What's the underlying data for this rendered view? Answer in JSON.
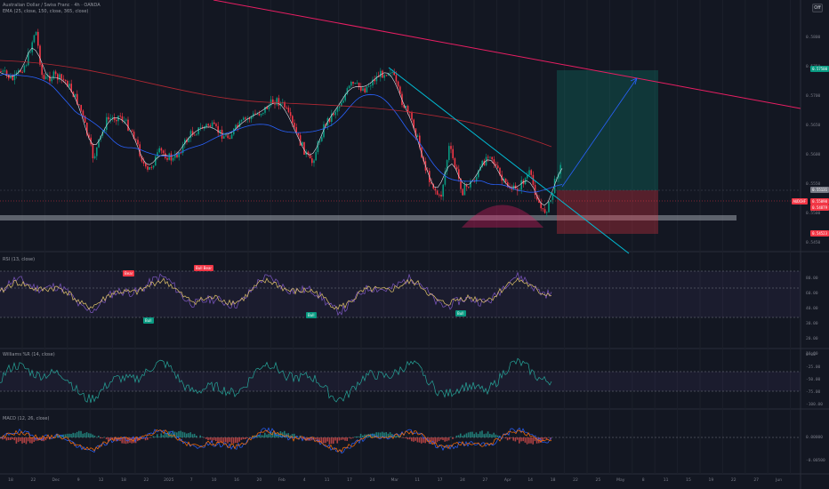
{
  "header": {
    "title": "Australian Dollar / Swiss Franc · 4h · OANDA",
    "ema_legend": "EMA (25, close, 150, close, 365, close)",
    "off_label": "Off"
  },
  "panes": {
    "rsi_label": "RSI (13, close)",
    "williams_label": "Williams %R (14, close)",
    "macd_label": "MACD (12, 26, close)"
  },
  "price_axis": [
    "0.5800",
    "0.5750",
    "0.5700",
    "0.5650",
    "0.5600",
    "0.5550",
    "0.5500",
    "0.5450"
  ],
  "price_tags": [
    {
      "label": "0.57500",
      "color": "#089981"
    },
    {
      "label": "0.55131",
      "color": "#787b86"
    },
    {
      "label": "0.55090",
      "color": "#f23645"
    },
    {
      "label": "0.54879",
      "color": "#f23645"
    },
    {
      "label": "0.54523",
      "color": "#f23645"
    }
  ],
  "symbol_tag": "AUDCHF",
  "rsi_axis": [
    "80.00",
    "60.00",
    "40.00",
    "30.00",
    "20.00",
    "10.00"
  ],
  "williams_axis": [
    "0.00",
    "-25.00",
    "-50.00",
    "-75.00",
    "-100.00"
  ],
  "macd_axis": [
    "0.00000",
    "-0.00500"
  ],
  "signals": [
    {
      "label": "Bear",
      "color": "#f23645"
    },
    {
      "label": "Bull",
      "color": "#089981"
    },
    {
      "label": "Bull Bear",
      "color": "#f23645"
    },
    {
      "label": "Bull",
      "color": "#089981"
    },
    {
      "label": "Bull",
      "color": "#089981"
    }
  ],
  "date_axis": [
    "18",
    "22",
    "Dec",
    "9",
    "12",
    "18",
    "22",
    "2025",
    "7",
    "10",
    "16",
    "20",
    "Feb",
    "4",
    "11",
    "17",
    "24",
    "Mar",
    "11",
    "17",
    "24",
    "27",
    "Apr",
    "14",
    "18",
    "22",
    "25",
    "May",
    "8",
    "11",
    "15",
    "19",
    "22",
    "27",
    "Jun"
  ],
  "colors": {
    "up": "#089981",
    "down": "#f23645",
    "ema_fast": "#e0e3eb",
    "ema_mid": "#2962ff",
    "ema_slow": "#b22833",
    "trend": "#e91e63"
  }
}
